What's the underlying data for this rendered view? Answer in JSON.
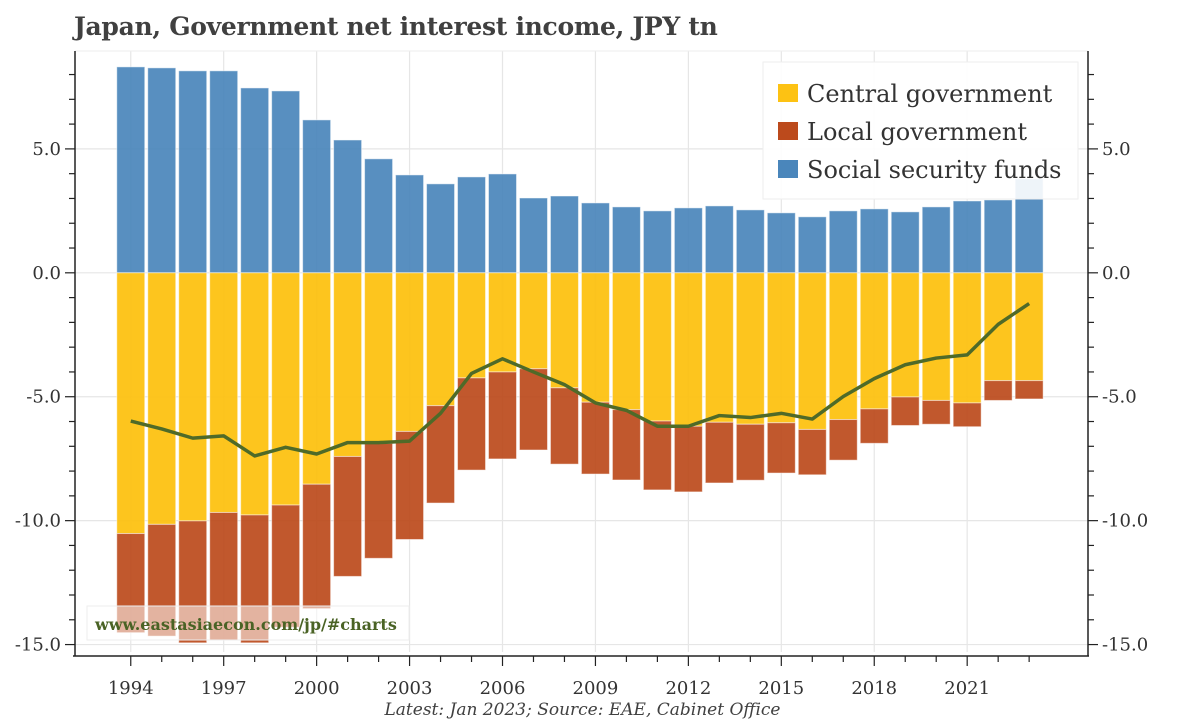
{
  "title": "Japan, Government net interest income, JPY tn",
  "source": "Latest: Jan 2023; Source: EAE, Cabinet Office",
  "watermark": "www.eastasiaecon.com/jp/#charts",
  "chart_data": {
    "type": "bar",
    "stacked": true,
    "title": "Japan, Government net interest income, JPY tn",
    "xlabel": "",
    "ylabel": "",
    "categories": [
      1994,
      1995,
      1996,
      1997,
      1998,
      1999,
      2000,
      2001,
      2002,
      2003,
      2004,
      2005,
      2006,
      2007,
      2008,
      2009,
      2010,
      2011,
      2012,
      2013,
      2014,
      2015,
      2016,
      2017,
      2018,
      2019,
      2020,
      2021,
      2022,
      2023
    ],
    "x_tick_labels": [
      "1994",
      "1997",
      "2000",
      "2003",
      "2006",
      "2009",
      "2012",
      "2015",
      "2018",
      "2021"
    ],
    "y_tick_labels": [
      "5.0",
      "0.0",
      "-5.0",
      "-10.0",
      "-15.0"
    ],
    "y_ticks": [
      5,
      0,
      -5,
      -10,
      -15
    ],
    "ylim": [
      -15.3,
      8.95
    ],
    "xlim": [
      1992.2,
      2024.9
    ],
    "grid": true,
    "legend_position": "top-right",
    "series": [
      {
        "name": "Central government",
        "color": "#fdc213",
        "values": [
          -10.52,
          -10.15,
          -10.01,
          -9.67,
          -9.77,
          -9.37,
          -8.53,
          -7.41,
          -6.88,
          -6.4,
          -5.36,
          -4.24,
          -4.0,
          -3.87,
          -4.64,
          -5.22,
          -5.52,
          -5.98,
          -6.19,
          -6.03,
          -6.11,
          -6.05,
          -6.32,
          -5.92,
          -5.49,
          -5.01,
          -5.15,
          -5.25,
          -4.35,
          -4.35
        ]
      },
      {
        "name": "Local government",
        "color": "#bc4a1c",
        "values": [
          -4.0,
          -4.51,
          -4.92,
          -5.15,
          -5.16,
          -4.93,
          -5.02,
          -4.84,
          -4.64,
          -4.36,
          -3.93,
          -3.72,
          -3.51,
          -3.28,
          -3.08,
          -2.9,
          -2.84,
          -2.78,
          -2.65,
          -2.45,
          -2.26,
          -2.03,
          -1.83,
          -1.64,
          -1.39,
          -1.15,
          -0.96,
          -0.96,
          -0.8,
          -0.74
        ]
      },
      {
        "name": "Social security funds",
        "color": "#4a86bb",
        "values": [
          8.31,
          8.27,
          8.15,
          8.15,
          7.46,
          7.34,
          6.17,
          5.36,
          4.6,
          3.95,
          3.59,
          3.87,
          3.99,
          3.02,
          3.1,
          2.82,
          2.66,
          2.5,
          2.62,
          2.7,
          2.54,
          2.42,
          2.26,
          2.5,
          2.58,
          2.46,
          2.66,
          2.9,
          2.94,
          3.8
        ]
      }
    ],
    "line": {
      "color": "#4f6a28",
      "values": [
        -5.98,
        -6.3,
        -6.67,
        -6.58,
        -7.39,
        -7.04,
        -7.31,
        -6.85,
        -6.85,
        -6.79,
        -5.67,
        -4.06,
        -3.47,
        -4.0,
        -4.51,
        -5.25,
        -5.55,
        -6.19,
        -6.19,
        -5.76,
        -5.84,
        -5.67,
        -5.9,
        -4.99,
        -4.27,
        -3.71,
        -3.44,
        -3.31,
        -2.08,
        -1.24
      ]
    }
  }
}
